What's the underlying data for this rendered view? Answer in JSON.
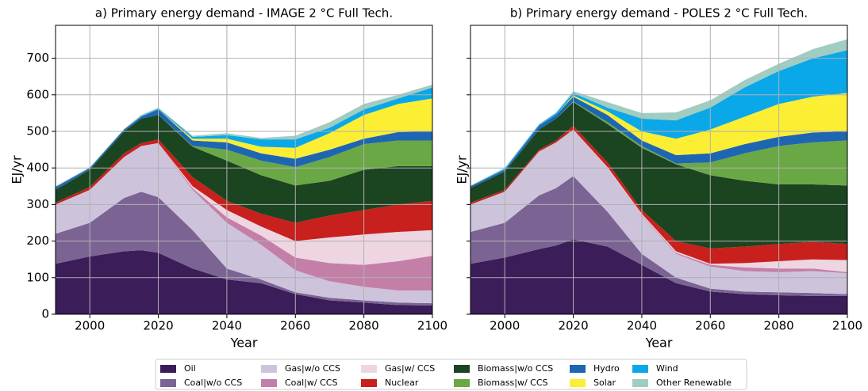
{
  "chart_data": [
    {
      "type": "stacked_area",
      "title": "a) Primary energy demand - IMAGE 2 °C Full Tech.",
      "xlabel": "Year",
      "ylabel": "EJ/yr",
      "x": [
        1990,
        2000,
        2010,
        2015,
        2020,
        2030,
        2040,
        2050,
        2060,
        2070,
        2080,
        2090,
        2100
      ],
      "xlim": [
        1990,
        2100
      ],
      "xticks": [
        2000,
        2020,
        2040,
        2060,
        2080,
        2100
      ],
      "ylim": [
        0,
        790
      ],
      "yticks": [
        0,
        100,
        200,
        300,
        400,
        500,
        600,
        700
      ],
      "grid": true,
      "legend": "bottom",
      "series": [
        {
          "name": "Oil",
          "color": "#3b1d5a",
          "values": [
            138,
            158,
            172,
            175,
            168,
            125,
            95,
            85,
            55,
            38,
            32,
            25,
            24
          ]
        },
        {
          "name": "Coal|w/o CCS",
          "color": "#7b6494",
          "values": [
            82,
            92,
            146,
            160,
            152,
            105,
            30,
            10,
            5,
            7,
            6,
            7,
            6
          ]
        },
        {
          "name": "Gas|w/o CCS",
          "color": "#cdc4dc",
          "values": [
            80,
            90,
            112,
            125,
            148,
            110,
            125,
            95,
            60,
            45,
            37,
            33,
            35
          ]
        },
        {
          "name": "Coal|w/ CCS",
          "color": "#c47fa8",
          "values": [
            0,
            0,
            0,
            0,
            0,
            5,
            15,
            25,
            35,
            50,
            60,
            80,
            95
          ]
        },
        {
          "name": "Gas|w/ CCS",
          "color": "#eed5e2",
          "values": [
            0,
            0,
            0,
            0,
            0,
            5,
            20,
            25,
            45,
            70,
            83,
            80,
            70
          ]
        },
        {
          "name": "Nuclear",
          "color": "#c8201c",
          "values": [
            5,
            8,
            10,
            8,
            10,
            25,
            25,
            35,
            50,
            60,
            67,
            75,
            80
          ]
        },
        {
          "name": "Biomass|w/o CCS",
          "color": "#1b4420",
          "values": [
            35,
            47,
            60,
            67,
            67,
            83,
            110,
            105,
            102,
            95,
            110,
            105,
            95
          ]
        },
        {
          "name": "Biomass|w/ CCS",
          "color": "#6aa845",
          "values": [
            0,
            0,
            0,
            0,
            0,
            2,
            30,
            40,
            50,
            65,
            70,
            70,
            70
          ]
        },
        {
          "name": "Hydro",
          "color": "#1f66b2",
          "values": [
            8,
            5,
            5,
            5,
            15,
            15,
            20,
            20,
            23,
            20,
            15,
            23,
            25
          ]
        },
        {
          "name": "Solar",
          "color": "#fcee33",
          "values": [
            0,
            0,
            0,
            0,
            0,
            5,
            10,
            18,
            30,
            45,
            65,
            77,
            90
          ]
        },
        {
          "name": "Wind",
          "color": "#0aa8e8",
          "values": [
            0,
            0,
            0,
            2,
            2,
            5,
            10,
            20,
            23,
            15,
            15,
            15,
            30
          ]
        },
        {
          "name": "Other Renewable",
          "color": "#a0ccc2",
          "values": [
            2,
            2,
            2,
            3,
            3,
            3,
            5,
            4,
            10,
            15,
            15,
            10,
            8
          ]
        }
      ]
    },
    {
      "type": "stacked_area",
      "title": "b) Primary energy demand - POLES 2 °C Full Tech.",
      "xlabel": "Year",
      "ylabel": "EJ/yr",
      "x": [
        1990,
        2000,
        2010,
        2015,
        2020,
        2030,
        2040,
        2050,
        2060,
        2070,
        2080,
        2090,
        2100
      ],
      "xlim": [
        1990,
        2100
      ],
      "xticks": [
        2000,
        2020,
        2040,
        2060,
        2080,
        2100
      ],
      "ylim": [
        0,
        790
      ],
      "yticks": [
        0,
        100,
        200,
        300,
        400,
        500,
        600,
        700
      ],
      "grid": true,
      "series": [
        {
          "values": [
            138,
            155,
            178,
            188,
            205,
            185,
            135,
            85,
            62,
            55,
            52,
            50,
            50
          ]
        },
        {
          "values": [
            87,
            95,
            147,
            157,
            173,
            95,
            30,
            15,
            8,
            7,
            8,
            8,
            5
          ]
        },
        {
          "values": [
            75,
            85,
            120,
            125,
            127,
            120,
            105,
            65,
            60,
            56,
            55,
            60,
            57
          ]
        },
        {
          "values": [
            0,
            0,
            0,
            0,
            0,
            0,
            2,
            3,
            5,
            10,
            10,
            7,
            3
          ]
        },
        {
          "values": [
            0,
            0,
            0,
            0,
            0,
            2,
            3,
            4,
            3,
            12,
            20,
            25,
            33
          ]
        },
        {
          "values": [
            5,
            5,
            5,
            5,
            10,
            13,
            10,
            28,
            42,
            45,
            47,
            48,
            44
          ]
        },
        {
          "values": [
            40,
            50,
            55,
            60,
            65,
            105,
            170,
            210,
            200,
            180,
            163,
            157,
            160
          ]
        },
        {
          "values": [
            0,
            0,
            0,
            0,
            2,
            5,
            5,
            2,
            35,
            75,
            105,
            115,
            123
          ]
        },
        {
          "values": [
            5,
            5,
            10,
            10,
            13,
            20,
            15,
            23,
            25,
            25,
            25,
            27,
            25
          ]
        },
        {
          "values": [
            0,
            0,
            0,
            0,
            3,
            10,
            25,
            45,
            65,
            75,
            90,
            98,
            105
          ]
        },
        {
          "values": [
            0,
            3,
            3,
            5,
            7,
            10,
            35,
            50,
            60,
            80,
            90,
            105,
            117
          ]
        },
        {
          "values": [
            2,
            2,
            2,
            2,
            5,
            15,
            15,
            22,
            20,
            20,
            20,
            25,
            30
          ]
        }
      ]
    }
  ]
}
